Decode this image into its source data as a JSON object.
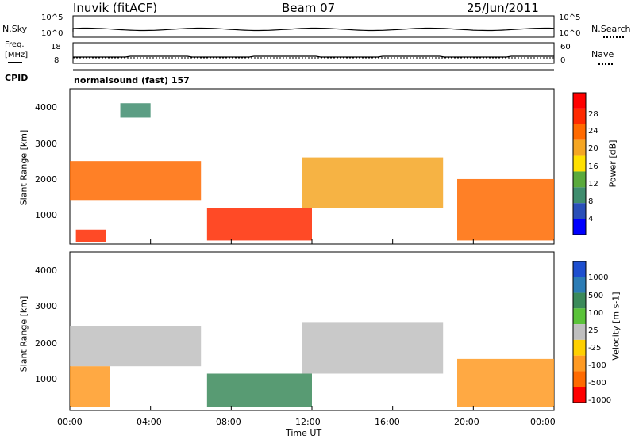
{
  "header": {
    "station": "Inuvik (fitACF)",
    "beam": "Beam 07",
    "date": "25/Jun/2011"
  },
  "top_panel": {
    "left_label": "N.Sky",
    "left_ticks": [
      "10^5",
      "10^0"
    ],
    "right_label": "N.Search",
    "right_ticks": [
      "10^5",
      "10^0"
    ]
  },
  "freq_panel": {
    "left_label_1": "Freq.",
    "left_label_2": "[MHz]",
    "left_ticks": [
      "18",
      "8"
    ],
    "right_label": "Nave",
    "right_ticks": [
      "60",
      "0"
    ]
  },
  "cpid": {
    "label": "CPID",
    "value": "normalsound (fast) 157"
  },
  "colors": {
    "power_scale": [
      "#0000ff",
      "#2a4fb8",
      "#3f8d6e",
      "#5aaa3c",
      "#ffe000",
      "#f5a623",
      "#ff6a00",
      "#ff2a00",
      "#ff0000"
    ],
    "velocity_scale": [
      "#1e4fcf",
      "#2c7cb5",
      "#3b8a5a",
      "#5bc33a",
      "#bfbfbf",
      "#ffd000",
      "#ff9a22",
      "#ff6a00",
      "#ff0000"
    ]
  },
  "chart_data": [
    {
      "type": "heatmap",
      "title": "",
      "xlabel": "",
      "ylabel": "Slant Range [km]",
      "ylim": [
        200,
        4500
      ],
      "xlim": [
        "00:00",
        "24:00"
      ],
      "y_ticks": [
        "4000",
        "3000",
        "2000",
        "1000"
      ],
      "colorbar": {
        "label": "Power [dB]",
        "ticks": [
          "28",
          "24",
          "20",
          "16",
          "12",
          "8",
          "4"
        ]
      },
      "regions": [
        {
          "t_start": 0.0,
          "t_end": 6.5,
          "r_start": 1400,
          "r_end": 2500,
          "value_db": 24
        },
        {
          "t_start": 0.3,
          "t_end": 1.8,
          "r_start": 250,
          "r_end": 600,
          "value_db": 28
        },
        {
          "t_start": 2.5,
          "t_end": 4.0,
          "r_start": 3700,
          "r_end": 4100,
          "value_db": 8
        },
        {
          "t_start": 6.8,
          "t_end": 12.0,
          "r_start": 300,
          "r_end": 1200,
          "value_db": 28
        },
        {
          "t_start": 11.5,
          "t_end": 18.5,
          "r_start": 1200,
          "r_end": 2600,
          "value_db": 20
        },
        {
          "t_start": 19.2,
          "t_end": 24.0,
          "r_start": 300,
          "r_end": 2000,
          "value_db": 24
        }
      ]
    },
    {
      "type": "heatmap",
      "title": "",
      "xlabel": "Time UT",
      "ylabel": "Slant Range [km]",
      "ylim": [
        200,
        4500
      ],
      "xlim": [
        "00:00",
        "24:00"
      ],
      "x_ticks": [
        "00:00",
        "04:00",
        "08:00",
        "12:00",
        "16:00",
        "20:00",
        "00:00"
      ],
      "y_ticks": [
        "4000",
        "3000",
        "2000",
        "1000"
      ],
      "colorbar": {
        "label": "Velocity [m s-1]",
        "ticks": [
          "1000",
          "500",
          "100",
          "25",
          "-25",
          "-100",
          "-500",
          "-1000"
        ]
      },
      "regions": [
        {
          "t_start": 0.0,
          "t_end": 6.5,
          "r_start": 1400,
          "r_end": 2500,
          "value_ms": 0
        },
        {
          "t_start": 0.0,
          "t_end": 2.0,
          "r_start": 300,
          "r_end": 1400,
          "value_ms": -500
        },
        {
          "t_start": 6.8,
          "t_end": 12.0,
          "r_start": 300,
          "r_end": 1200,
          "value_ms": 100
        },
        {
          "t_start": 11.5,
          "t_end": 18.5,
          "r_start": 1200,
          "r_end": 2600,
          "value_ms": 0
        },
        {
          "t_start": 19.2,
          "t_end": 24.0,
          "r_start": 300,
          "r_end": 1600,
          "value_ms": -500
        }
      ]
    }
  ]
}
